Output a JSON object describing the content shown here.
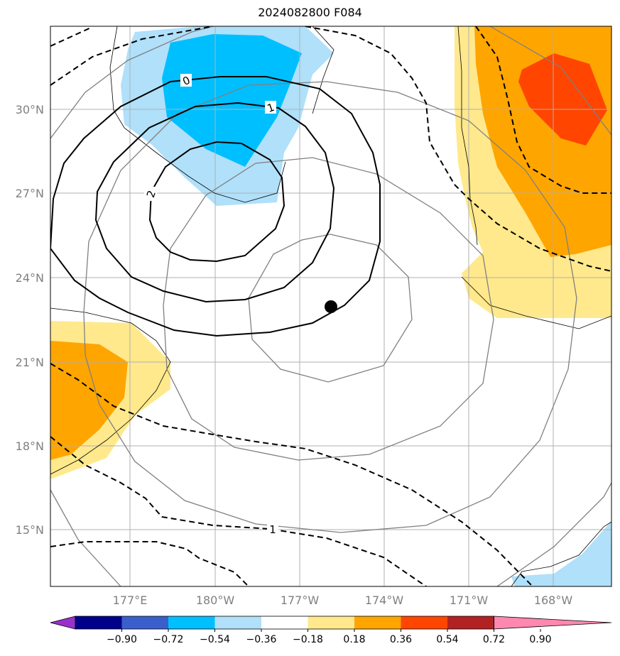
{
  "title": "2024082800 F084",
  "map": {
    "lon_labels": [
      "177°E",
      "180°W",
      "177°W",
      "174°W",
      "171°W",
      "168°W"
    ],
    "lat_labels": [
      "30°N",
      "27°N",
      "24°N",
      "21°N",
      "18°N",
      "15°N"
    ],
    "gridlines": "on",
    "storm_marker": "center-right of low",
    "contour_labels": [
      "0",
      "1",
      "2",
      "1"
    ]
  },
  "colorbar": {
    "ticks": [
      "−0.90",
      "−0.72",
      "−0.54",
      "−0.36",
      "−0.18",
      "0.18",
      "0.36",
      "0.54",
      "0.72",
      "0.90"
    ],
    "colors": [
      "#9932cc",
      "#00008b",
      "#3a5fcd",
      "#00bfff",
      "#b0e0fa",
      "#ffffff",
      "#ffe98c",
      "#ffa500",
      "#ff4500",
      "#b22222",
      "#ff88b0"
    ],
    "extend": "both"
  },
  "colors": {
    "light_blue": "#b0e0fa",
    "blue": "#00bfff",
    "light_yellow": "#ffe98c",
    "orange": "#ffa500",
    "red_orange": "#ff4500"
  }
}
